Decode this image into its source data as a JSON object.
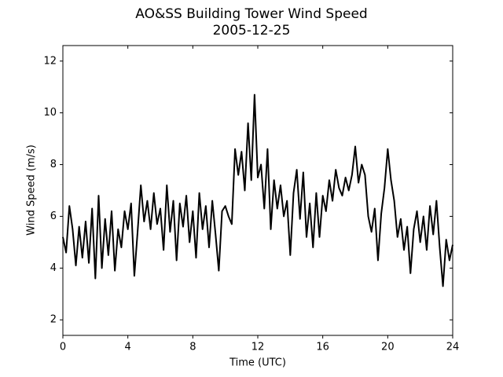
{
  "chart_data": {
    "type": "line",
    "title": "AO&SS Building Tower Wind Speed",
    "subtitle": "2005-12-25",
    "x_label": "Time (UTC)",
    "y_label": "Wind Speed (m/s)",
    "x": [
      0,
      0.2,
      0.4,
      0.6,
      0.8,
      1,
      1.2,
      1.4,
      1.6,
      1.8,
      2,
      2.2,
      2.4,
      2.6,
      2.8,
      3,
      3.2,
      3.4,
      3.6,
      3.8,
      4,
      4.2,
      4.4,
      4.6,
      4.8,
      5,
      5.2,
      5.4,
      5.6,
      5.8,
      6,
      6.2,
      6.4,
      6.6,
      6.8,
      7,
      7.2,
      7.4,
      7.6,
      7.8,
      8,
      8.2,
      8.4,
      8.6,
      8.8,
      9,
      9.2,
      9.4,
      9.6,
      9.8,
      10,
      10.2,
      10.4,
      10.6,
      10.8,
      11,
      11.2,
      11.4,
      11.6,
      11.8,
      12,
      12.2,
      12.4,
      12.6,
      12.8,
      13,
      13.2,
      13.4,
      13.6,
      13.8,
      14,
      14.2,
      14.4,
      14.6,
      14.8,
      15,
      15.2,
      15.4,
      15.6,
      15.8,
      16,
      16.2,
      16.4,
      16.6,
      16.8,
      17,
      17.2,
      17.4,
      17.6,
      17.8,
      18,
      18.2,
      18.4,
      18.6,
      18.8,
      19,
      19.2,
      19.4,
      19.6,
      19.8,
      20,
      20.2,
      20.4,
      20.6,
      20.8,
      21,
      21.2,
      21.4,
      21.6,
      21.8,
      22,
      22.2,
      22.4,
      22.6,
      22.8,
      23,
      23.2,
      23.4,
      23.6,
      23.8,
      24
    ],
    "series": [
      {
        "name": "Wind Speed",
        "color": "#000000",
        "values": [
          5.2,
          4.6,
          6.4,
          5.5,
          4.1,
          5.6,
          4.4,
          5.8,
          4.2,
          6.3,
          3.6,
          6.8,
          4.0,
          5.9,
          4.5,
          6.2,
          3.9,
          5.5,
          4.8,
          6.2,
          5.5,
          6.5,
          3.7,
          5.4,
          7.2,
          5.8,
          6.6,
          5.5,
          6.9,
          5.7,
          6.3,
          4.7,
          7.2,
          5.4,
          6.6,
          4.3,
          6.5,
          5.6,
          6.8,
          5.0,
          6.2,
          4.4,
          6.9,
          5.5,
          6.4,
          4.8,
          6.6,
          5.3,
          3.9,
          6.2,
          6.4,
          6.0,
          5.7,
          8.6,
          7.6,
          8.5,
          7.0,
          9.6,
          7.4,
          10.7,
          7.5,
          8.0,
          6.3,
          8.6,
          5.5,
          7.4,
          6.3,
          7.2,
          6.0,
          6.6,
          4.5,
          6.9,
          7.8,
          5.9,
          7.7,
          5.2,
          6.5,
          4.8,
          6.9,
          5.2,
          6.8,
          6.2,
          7.4,
          6.6,
          7.8,
          7.1,
          6.8,
          7.5,
          7.0,
          7.6,
          8.7,
          7.3,
          8.0,
          7.6,
          6.0,
          5.4,
          6.3,
          4.3,
          6.1,
          7.1,
          8.6,
          7.4,
          6.6,
          5.2,
          5.9,
          4.7,
          5.6,
          3.8,
          5.5,
          6.2,
          5.0,
          6.0,
          4.7,
          6.4,
          5.3,
          6.6,
          4.8,
          3.3,
          5.1,
          4.3,
          4.9
        ]
      }
    ],
    "xlim": [
      0,
      24
    ],
    "xticks": [
      0,
      4,
      8,
      12,
      16,
      20,
      24
    ],
    "ylim": [
      1.4,
      12.6
    ],
    "yticks": [
      2,
      4,
      6,
      8,
      10,
      12
    ],
    "grid": false
  }
}
